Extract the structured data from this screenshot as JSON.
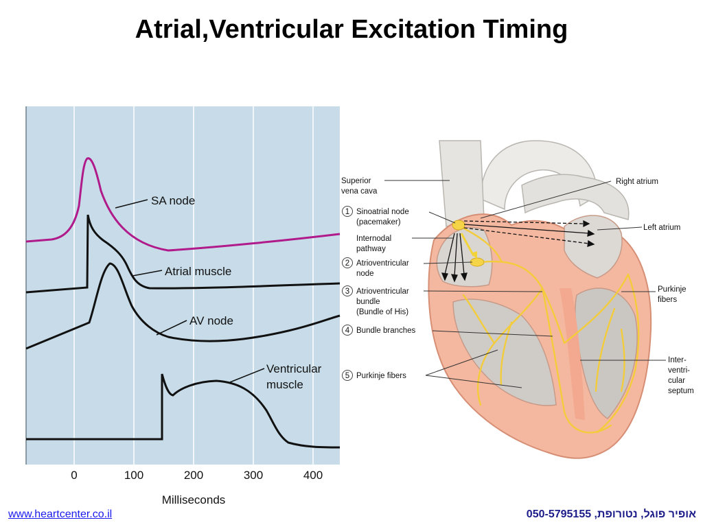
{
  "title": "Atrial,Ventricular Excitation Timing",
  "timing_plot": {
    "x_axis_label": "Milliseconds",
    "x_ticks": [
      "0",
      "100",
      "200",
      "300",
      "400"
    ],
    "traces": [
      {
        "label": "SA node",
        "color": "#b01a8a"
      },
      {
        "label": "Atrial muscle",
        "color": "#111111"
      },
      {
        "label": "AV node",
        "color": "#111111"
      },
      {
        "label": "Ventricular",
        "label2": "muscle",
        "color": "#111111"
      }
    ],
    "background": "#c7dce8"
  },
  "heart_labels": {
    "superior_vena_cava_1": "Superior",
    "superior_vena_cava_2": "vena cava",
    "item1_num": "1",
    "item1_1": "Sinoatrial node",
    "item1_2": "(pacemaker)",
    "internodal_1": "Internodal",
    "internodal_2": "pathway",
    "item2_num": "2",
    "item2_1": "Atrioventricular",
    "item2_2": "node",
    "item3_num": "3",
    "item3_1": "Atrioventricular",
    "item3_2": "bundle",
    "item3_3": "(Bundle of His)",
    "item4_num": "4",
    "item4_1": "Bundle branches",
    "item5_num": "5",
    "item5_1": "Purkinje fibers",
    "right_atrium": "Right atrium",
    "left_atrium": "Left atrium",
    "purkinje_right_1": "Purkinje",
    "purkinje_right_2": "fibers",
    "septum_1": "Inter-",
    "septum_2": "ventri-",
    "septum_3": "cular",
    "septum_4": "septum"
  },
  "footer": {
    "link": "www.heartcenter.co.il",
    "contact": "אופיר פוגל, נטורופת, 050-5795155"
  }
}
